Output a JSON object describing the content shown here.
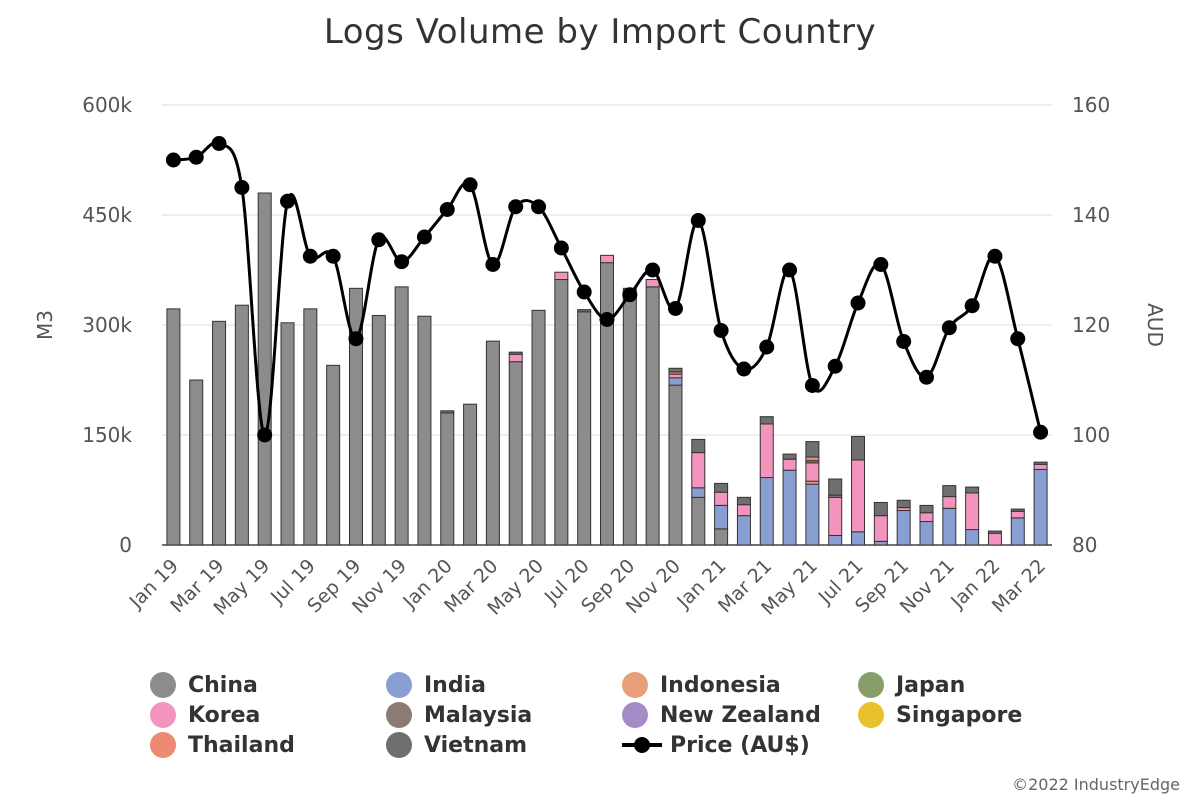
{
  "chart_data": {
    "type": "bar",
    "title": "Logs Volume by Import Country",
    "ylabel": "M3",
    "y2label": "AUD",
    "ylim": [
      0,
      600000
    ],
    "y2lim": [
      80,
      160
    ],
    "yticks": [
      "0",
      "150k",
      "300k",
      "450k",
      "600k"
    ],
    "y2ticks": [
      "80",
      "100",
      "120",
      "140",
      "160"
    ],
    "grid": true,
    "legend_position": "bottom",
    "categories": [
      "Jan 19",
      "Feb 19",
      "Mar 19",
      "Apr 19",
      "May 19",
      "Jun 19",
      "Jul 19",
      "Aug 19",
      "Sep 19",
      "Oct 19",
      "Nov 19",
      "Dec 19",
      "Jan 20",
      "Feb 20",
      "Mar 20",
      "Apr 20",
      "May 20",
      "Jun 20",
      "Jul 20",
      "Aug 20",
      "Sep 20",
      "Oct 20",
      "Nov 20",
      "Dec 20",
      "Jan 21",
      "Feb 21",
      "Mar 21",
      "Apr 21",
      "May 21",
      "Jun 21",
      "Jul 21",
      "Aug 21",
      "Sep 21",
      "Oct 21",
      "Nov 21",
      "Dec 21",
      "Jan 22",
      "Feb 22",
      "Mar 22"
    ],
    "xticklabels": [
      "Jan 19",
      "Mar 19",
      "May 19",
      "Jul 19",
      "Sep 19",
      "Nov 19",
      "Jan 20",
      "Mar 20",
      "May 20",
      "Jul 20",
      "Sep 20",
      "Nov 20",
      "Jan 21",
      "Mar 21",
      "May 21",
      "Jul 21",
      "Sep 21",
      "Nov 21",
      "Jan 22",
      "Mar 22"
    ],
    "series": [
      {
        "name": "China",
        "color": "#8c8c8c",
        "values": [
          322000,
          225000,
          305000,
          327000,
          480000,
          303000,
          322000,
          245000,
          350000,
          313000,
          352000,
          312000,
          180000,
          192000,
          278000,
          250000,
          320000,
          362000,
          318000,
          385000,
          350000,
          352000,
          218000,
          65000,
          22000,
          0,
          0,
          0,
          0,
          0,
          0,
          0,
          0,
          0,
          0,
          0,
          0,
          0,
          0
        ]
      },
      {
        "name": "India",
        "color": "#8a9fd1",
        "values": [
          0,
          0,
          0,
          0,
          0,
          0,
          0,
          0,
          0,
          0,
          0,
          0,
          0,
          0,
          0,
          0,
          0,
          0,
          0,
          0,
          0,
          0,
          10000,
          13000,
          32000,
          40000,
          92000,
          102000,
          83000,
          13000,
          18000,
          5000,
          47000,
          32000,
          50000,
          21000,
          0,
          37000,
          103000
        ]
      },
      {
        "name": "Indonesia",
        "color": "#e8a07a",
        "values": [
          0,
          0,
          0,
          0,
          0,
          0,
          0,
          0,
          0,
          0,
          0,
          0,
          0,
          0,
          0,
          0,
          0,
          0,
          0,
          0,
          0,
          0,
          0,
          0,
          0,
          0,
          0,
          0,
          4000,
          0,
          0,
          0,
          0,
          0,
          0,
          0,
          0,
          0,
          0
        ]
      },
      {
        "name": "Japan",
        "color": "#869e6a",
        "values": [
          0,
          0,
          0,
          0,
          0,
          0,
          0,
          0,
          0,
          0,
          0,
          0,
          0,
          0,
          0,
          0,
          0,
          0,
          0,
          0,
          0,
          0,
          0,
          0,
          0,
          0,
          0,
          0,
          0,
          0,
          0,
          0,
          0,
          0,
          0,
          0,
          0,
          0,
          0
        ]
      },
      {
        "name": "Korea",
        "color": "#f294be",
        "values": [
          0,
          0,
          0,
          0,
          0,
          0,
          0,
          0,
          0,
          0,
          0,
          0,
          0,
          0,
          0,
          10000,
          0,
          10000,
          0,
          10000,
          0,
          10000,
          5000,
          48000,
          18000,
          15000,
          73000,
          15000,
          25000,
          52000,
          98000,
          35000,
          4000,
          12000,
          16000,
          50000,
          16000,
          9000,
          7000
        ]
      },
      {
        "name": "Malaysia",
        "color": "#8c7b74",
        "values": [
          0,
          0,
          0,
          0,
          0,
          0,
          0,
          0,
          0,
          0,
          0,
          0,
          0,
          0,
          0,
          0,
          0,
          0,
          0,
          0,
          0,
          0,
          0,
          0,
          0,
          0,
          0,
          0,
          3000,
          3000,
          0,
          0,
          0,
          0,
          0,
          0,
          0,
          0,
          0
        ]
      },
      {
        "name": "New Zealand",
        "color": "#a58bc5",
        "values": [
          0,
          0,
          0,
          0,
          0,
          0,
          0,
          0,
          0,
          0,
          0,
          0,
          0,
          0,
          0,
          0,
          0,
          0,
          0,
          0,
          0,
          0,
          0,
          0,
          0,
          0,
          0,
          0,
          0,
          0,
          0,
          0,
          0,
          0,
          0,
          0,
          0,
          0,
          0
        ]
      },
      {
        "name": "Singapore",
        "color": "#e8c22a",
        "values": [
          0,
          0,
          0,
          0,
          0,
          0,
          0,
          0,
          0,
          0,
          0,
          0,
          0,
          0,
          0,
          0,
          0,
          0,
          0,
          0,
          0,
          0,
          0,
          0,
          0,
          0,
          0,
          0,
          0,
          0,
          0,
          0,
          0,
          0,
          0,
          0,
          0,
          0,
          0
        ]
      },
      {
        "name": "Thailand",
        "color": "#ee8a72",
        "values": [
          0,
          0,
          0,
          0,
          0,
          0,
          0,
          0,
          0,
          0,
          0,
          0,
          0,
          0,
          0,
          0,
          0,
          0,
          0,
          0,
          0,
          0,
          3000,
          0,
          0,
          0,
          0,
          0,
          5000,
          0,
          0,
          0,
          0,
          0,
          0,
          0,
          0,
          0,
          0
        ]
      },
      {
        "name": "Vietnam",
        "color": "#6f6f6f",
        "values": [
          0,
          0,
          0,
          0,
          0,
          0,
          0,
          0,
          0,
          0,
          0,
          0,
          3000,
          0,
          0,
          3000,
          0,
          0,
          3000,
          0,
          0,
          0,
          5000,
          18000,
          12000,
          10000,
          10000,
          7000,
          21000,
          22000,
          32000,
          18000,
          10000,
          10000,
          15000,
          8000,
          3000,
          3000,
          3000
        ]
      },
      {
        "name": "Price (AU$)",
        "color": "#000000",
        "type": "line",
        "axis": "y2",
        "values": [
          150,
          150.5,
          153,
          145,
          100,
          142.5,
          132.5,
          132.5,
          117.5,
          135.5,
          131.5,
          136,
          141,
          145.5,
          131,
          141.5,
          141.5,
          134,
          126,
          121,
          125.5,
          130,
          123,
          139,
          119,
          112,
          116,
          130,
          109,
          112.5,
          124,
          131,
          117,
          110.5,
          119.5,
          123.5,
          132.5,
          117.5,
          100.5
        ]
      }
    ]
  },
  "legend": {
    "items": [
      {
        "label": "China",
        "color": "#8c8c8c"
      },
      {
        "label": "India",
        "color": "#8a9fd1"
      },
      {
        "label": "Indonesia",
        "color": "#e8a07a"
      },
      {
        "label": "Japan",
        "color": "#869e6a"
      },
      {
        "label": "Korea",
        "color": "#f294be"
      },
      {
        "label": "Malaysia",
        "color": "#8c7b74"
      },
      {
        "label": "New Zealand",
        "color": "#a58bc5"
      },
      {
        "label": "Singapore",
        "color": "#e8c22a"
      },
      {
        "label": "Thailand",
        "color": "#ee8a72"
      },
      {
        "label": "Vietnam",
        "color": "#6f6f6f"
      },
      {
        "label": "Price (AU$)",
        "color": "#000000",
        "line": true
      }
    ]
  },
  "copyright": "©2022 IndustryEdge"
}
